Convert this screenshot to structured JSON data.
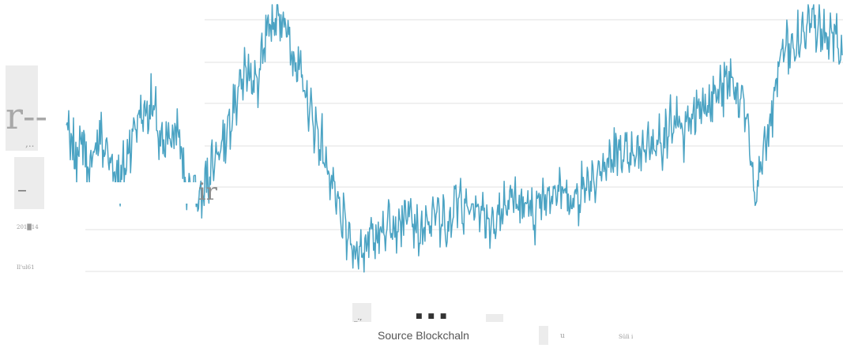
{
  "colors": {
    "line": "#4ba3c3",
    "grid": "#e6e6e6",
    "background": "#ffffff",
    "source_text": "#555555"
  },
  "artifacts": {
    "left_top_glyph": "r--",
    "left_top_small": ",..",
    "left_mid_glyph": "–",
    "right_of_mask_glyph": "ir",
    "tick_upper": "201█14",
    "tick_lower": "Il'ul61",
    "bottom_mark_1": "_.,",
    "bottom_mark_2": "■ ■ ■",
    "bottom_mark_3": "u",
    "bottom_mark_4": "Sûlì i"
  },
  "source": "Source Blockchaln",
  "chart_data": {
    "type": "line",
    "title": "",
    "xlabel": "",
    "ylabel": "",
    "grid": true,
    "ylim": [
      0,
      100
    ],
    "series": [
      {
        "values": [
          56,
          46,
          52,
          40,
          54,
          48,
          42,
          38,
          50,
          60,
          62,
          64,
          48,
          52,
          58,
          36,
          34,
          30,
          40,
          48,
          52,
          64,
          72,
          78,
          70,
          84,
          94,
          98,
          88,
          80,
          70,
          60,
          52,
          42,
          30,
          22,
          14,
          12,
          16,
          18,
          20,
          24,
          22,
          26,
          20,
          18,
          24,
          26,
          22,
          28,
          30,
          26,
          28,
          24,
          22,
          28,
          32,
          30,
          28,
          26,
          30,
          34,
          36,
          32,
          30,
          34,
          38,
          40,
          42,
          46,
          48,
          44,
          46,
          50,
          52,
          50,
          56,
          58,
          54,
          60,
          64,
          66,
          68,
          70,
          74,
          66,
          60,
          28,
          48,
          58,
          80,
          86,
          84,
          90,
          100,
          92,
          86,
          88,
          82
        ]
      }
    ]
  }
}
